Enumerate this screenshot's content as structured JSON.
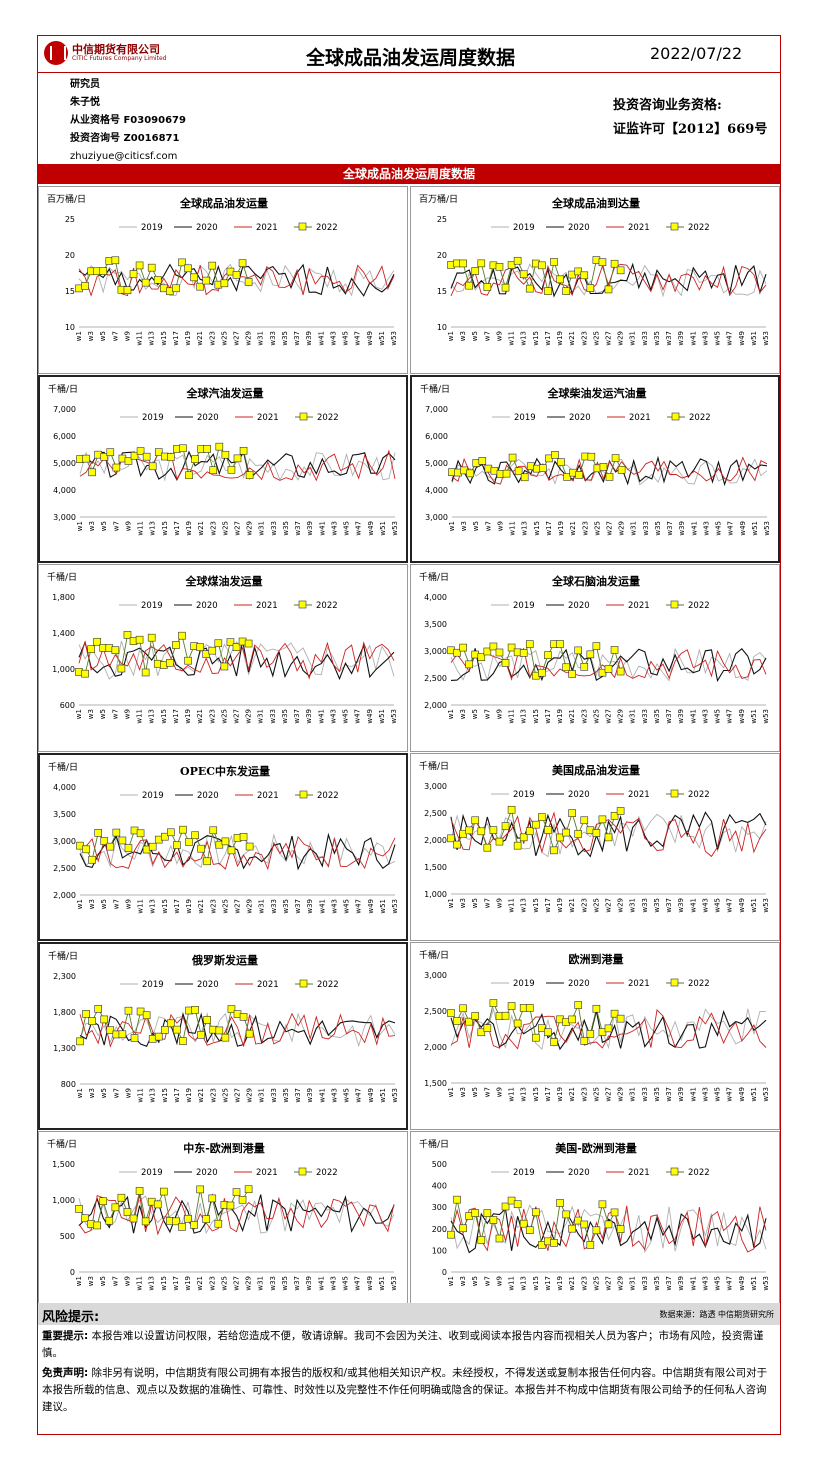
{
  "header": {
    "logo_cn": "中信期货有限公司",
    "logo_en": "CITIC Futures Company Limited",
    "title": "全球成品油发运周度数据",
    "date": "2022/07/22"
  },
  "analyst": {
    "role": "研究员",
    "name": "朱子悦",
    "qualification": "从业资格号 F03090679",
    "consult": "投资咨询号 Z0016871",
    "email": "zhuziyue@citicsf.com"
  },
  "license": {
    "line1": "投资咨询业务资格:",
    "line2": "证监许可【2012】669号"
  },
  "section_title": "全球成品油发运周度数据",
  "colors": {
    "c2019": "#b0b0b0",
    "c2020": "#111111",
    "c2021": "#cc2222",
    "c2022_line": "#5a7a2a",
    "c2022_marker": "#ffff00",
    "brand": "#c00000"
  },
  "chart_data": [
    {
      "type": "line",
      "title": "全球成品油发运量",
      "unit": "百万桶/日",
      "ylim": [
        10,
        25
      ],
      "yticks": [
        "10",
        "15",
        "20",
        "25"
      ],
      "seed": 1,
      "level": 16.5,
      "amp": 2.2
    },
    {
      "type": "line",
      "title": "全球成品油到达量",
      "unit": "百万桶/日",
      "ylim": [
        10,
        25
      ],
      "yticks": [
        "10",
        "15",
        "20",
        "25"
      ],
      "seed": 2,
      "level": 16.5,
      "amp": 2.2
    },
    {
      "type": "line",
      "title": "全球汽油发运量",
      "unit": "千桶/日",
      "ylim": [
        3000,
        7000
      ],
      "yticks": [
        "3,000",
        "4,000",
        "5,000",
        "6,000",
        "7,000"
      ],
      "seed": 3,
      "level": 4900,
      "amp": 550
    },
    {
      "type": "line",
      "title": "全球柴油发运汽油量",
      "unit": "千桶/日",
      "ylim": [
        3000,
        7000
      ],
      "yticks": [
        "3,000",
        "4,000",
        "5,000",
        "6,000",
        "7,000"
      ],
      "seed": 4,
      "level": 4700,
      "amp": 500
    },
    {
      "type": "line",
      "title": "全球煤油发运量",
      "unit": "千桶/日",
      "ylim": [
        600,
        1800
      ],
      "yticks": [
        "600",
        "1,000",
        "1,400",
        "1,800"
      ],
      "seed": 5,
      "level": 1100,
      "amp": 220
    },
    {
      "type": "line",
      "title": "全球石脑油发运量",
      "unit": "千桶/日",
      "ylim": [
        2000,
        4000
      ],
      "yticks": [
        "2,000",
        "2,500",
        "3,000",
        "3,500",
        "4,000"
      ],
      "seed": 6,
      "level": 2750,
      "amp": 300
    },
    {
      "type": "line",
      "title": "OPEC中东发运量",
      "unit": "千桶/日",
      "ylim": [
        2000,
        4000
      ],
      "yticks": [
        "2,000",
        "2,500",
        "3,000",
        "3,500",
        "4,000"
      ],
      "seed": 7,
      "level": 2800,
      "amp": 320
    },
    {
      "type": "line",
      "title": "美国成品油发运量",
      "unit": "千桶/日",
      "ylim": [
        1000,
        3000
      ],
      "yticks": [
        "1,000",
        "1,500",
        "2,000",
        "2,500",
        "3,000"
      ],
      "seed": 8,
      "level": 2100,
      "amp": 420
    },
    {
      "type": "line",
      "title": "俄罗斯发运量",
      "unit": "千桶/日",
      "ylim": [
        800,
        2300
      ],
      "yticks": [
        "800",
        "1,300",
        "1,800",
        "2,300"
      ],
      "seed": 9,
      "level": 1550,
      "amp": 230
    },
    {
      "type": "line",
      "title": "欧洲到港量",
      "unit": "千桶/日",
      "ylim": [
        1500,
        3000
      ],
      "yticks": [
        "1,500",
        "2,000",
        "2,500",
        "3,000"
      ],
      "seed": 10,
      "level": 2250,
      "amp": 280
    },
    {
      "type": "line",
      "title": "中东-欧洲到港量",
      "unit": "千桶/日",
      "ylim": [
        0,
        1500
      ],
      "yticks": [
        "0",
        "500",
        "1,000",
        "1,500"
      ],
      "seed": 11,
      "level": 800,
      "amp": 280
    },
    {
      "type": "line",
      "title": "美国-欧洲到港量",
      "unit": "千桶/日",
      "ylim": [
        0,
        500
      ],
      "yticks": [
        "0",
        "100",
        "200",
        "300",
        "400",
        "500"
      ],
      "seed": 12,
      "level": 200,
      "amp": 110
    }
  ],
  "legend": [
    "2019",
    "2020",
    "2021",
    "2022"
  ],
  "xticks": [
    "w1",
    "w3",
    "w5",
    "w7",
    "w9",
    "w11",
    "w13",
    "w15",
    "w17",
    "w19",
    "w21",
    "w23",
    "w25",
    "w27",
    "w29",
    "w31",
    "w33",
    "w35",
    "w37",
    "w39",
    "w41",
    "w43",
    "w45",
    "w47",
    "w49",
    "w51",
    "w53"
  ],
  "footer": {
    "risk_title": "风险提示:",
    "source": "数据来源：路透  中信期货研究所",
    "important_label": "重要提示:",
    "important_text": "本报告难以设置访问权限，若给您造成不便，敬请谅解。我司不会因为关注、收到或阅读本报告内容而视相关人员为客户；市场有风险，投资需谨慎。",
    "disclaimer_label": "免责声明:",
    "disclaimer_text": "除非另有说明，中信期货有限公司拥有本报告的版权和/或其他相关知识产权。未经授权，不得发送或复制本报告任何内容。中信期货有限公司对于本报告所载的信息、观点以及数据的准确性、可靠性、时效性以及完整性不作任何明确或隐含的保证。本报告并不构成中信期货有限公司给予的任何私人咨询建议。"
  }
}
